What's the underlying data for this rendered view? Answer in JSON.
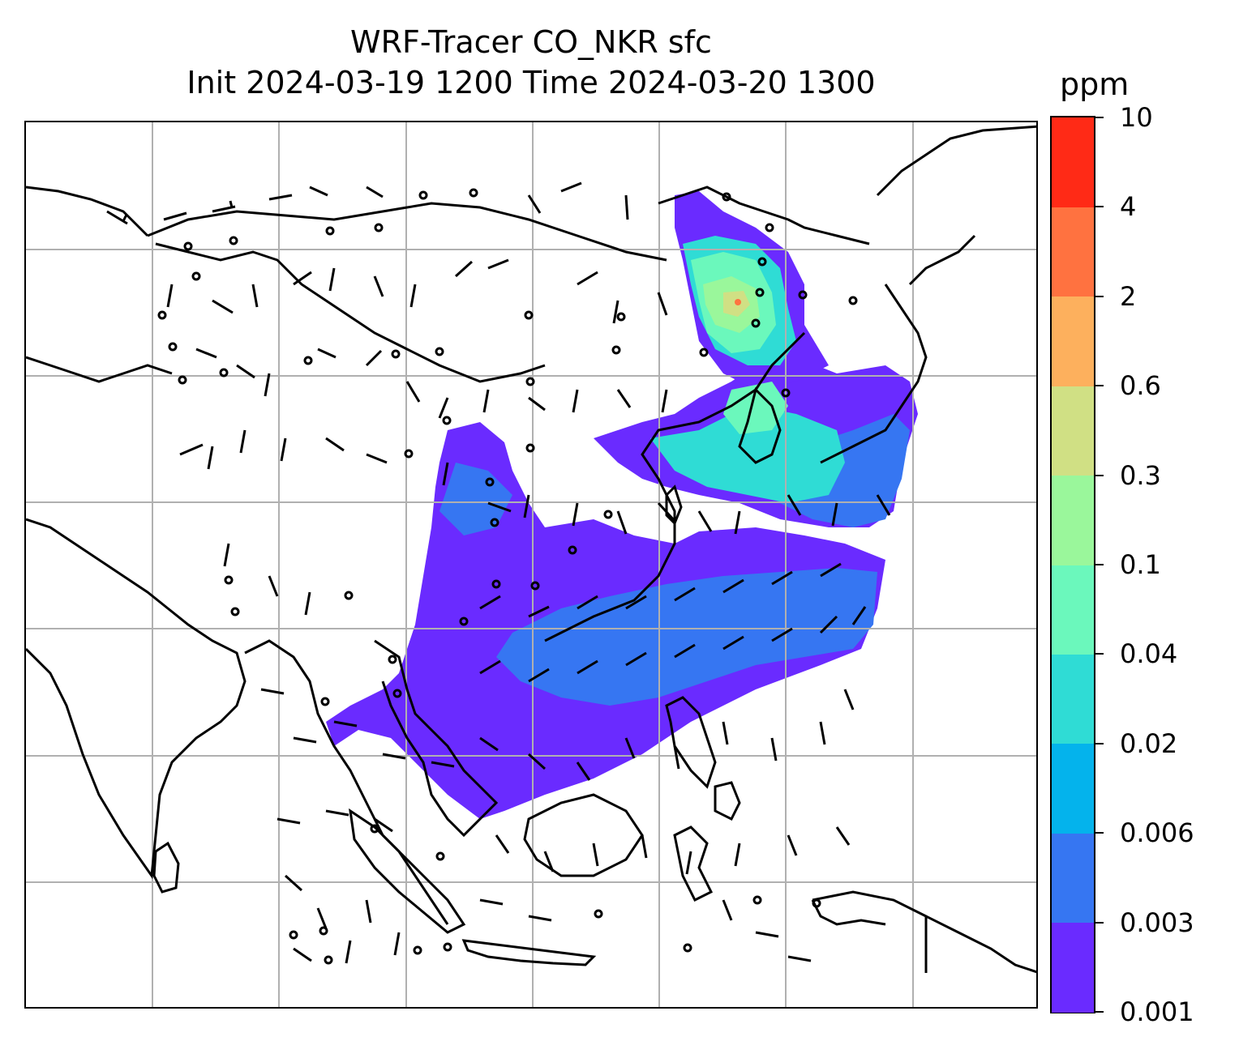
{
  "title": {
    "line1": "WRF-Tracer CO_NKR sfc",
    "line2": "Init 2024-03-19 1200 Time 2024-03-20 1300"
  },
  "colorbar": {
    "units": "ppm",
    "levels": [
      "0.001",
      "0.003",
      "0.006",
      "0.02",
      "0.04",
      "0.1",
      "0.3",
      "0.6",
      "2",
      "4",
      "10"
    ],
    "colors": [
      "#6a2bff",
      "#3676f2",
      "#04b3ec",
      "#2fdcd5",
      "#6bf8bc",
      "#9af79b",
      "#d0e084",
      "#fdb05d",
      "#ff7240",
      "#ff2a16"
    ]
  },
  "map": {
    "projection": "lat-lon",
    "gridlines": "on",
    "gridline_color": "#b0b0b0",
    "coastline_color": "#000000",
    "field": "CO_NKR tracer concentration (filled contours)",
    "wind": "wind barbs"
  }
}
